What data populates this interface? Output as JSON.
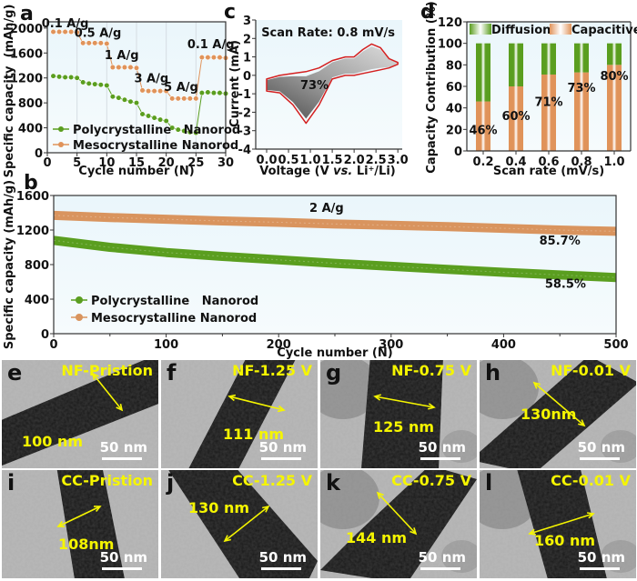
{
  "chart_data": [
    {
      "id": "a",
      "type": "scatter-line",
      "panel_label": "a",
      "xlabel": "Cycle number (N)",
      "ylabel": "Specific capacity  (mAh/g)",
      "xlim": [
        0,
        30
      ],
      "ylim": [
        0,
        2100
      ],
      "xticks": [
        0,
        5,
        10,
        15,
        20,
        25,
        30
      ],
      "yticks": [
        0,
        400,
        800,
        1200,
        1600,
        2000
      ],
      "grid": "vertical",
      "legend_position": "bottom-left",
      "annotations": [
        {
          "text": "0.1 A/g",
          "x": 3,
          "y": 2010
        },
        {
          "text": "0.5 A/g",
          "x": 8.5,
          "y": 1860
        },
        {
          "text": "1 A/g",
          "x": 12.5,
          "y": 1500
        },
        {
          "text": "3 A/g",
          "x": 17.5,
          "y": 1130
        },
        {
          "text": "5 A/g",
          "x": 22.5,
          "y": 990
        },
        {
          "text": "0.1 A/g",
          "x": 27.5,
          "y": 1680
        }
      ],
      "series": [
        {
          "name": "Polycrystalline   Nanorod",
          "color": "#5a9e1f",
          "x": [
            1,
            2,
            3,
            4,
            5,
            6,
            7,
            8,
            9,
            10,
            11,
            12,
            13,
            14,
            15,
            16,
            17,
            18,
            19,
            20,
            21,
            22,
            23,
            24,
            25,
            26,
            27,
            28,
            29,
            30
          ],
          "y": [
            1230,
            1220,
            1210,
            1210,
            1200,
            1130,
            1110,
            1100,
            1090,
            1080,
            900,
            880,
            850,
            820,
            800,
            620,
            590,
            560,
            530,
            510,
            400,
            370,
            350,
            330,
            320,
            960,
            970,
            960,
            960,
            950
          ]
        },
        {
          "name": "Mesocrystalline Nanorod",
          "color": "#e0935a",
          "x": [
            1,
            2,
            3,
            4,
            5,
            6,
            7,
            8,
            9,
            10,
            11,
            12,
            13,
            14,
            15,
            16,
            17,
            18,
            19,
            20,
            21,
            22,
            23,
            24,
            25,
            26,
            27,
            28,
            29,
            30
          ],
          "y": [
            1940,
            1940,
            1940,
            1940,
            1930,
            1760,
            1760,
            1760,
            1760,
            1750,
            1370,
            1370,
            1370,
            1370,
            1360,
            1000,
            990,
            990,
            990,
            990,
            870,
            870,
            870,
            870,
            870,
            1530,
            1530,
            1530,
            1530,
            1520
          ]
        }
      ]
    },
    {
      "id": "c",
      "type": "line",
      "panel_label": "c",
      "title": "Scan Rate: 0.8 mV/s",
      "xlabel_parts": [
        "Voltage (V ",
        "vs.",
        " Li",
        "+",
        "/Li)"
      ],
      "ylabel": "Current (mA)",
      "xlim": [
        -0.25,
        3.1
      ],
      "ylim": [
        -4,
        3
      ],
      "xticks": [
        "0.0",
        "0.5",
        "1.0",
        "1.5",
        "2.0",
        "2.5",
        "3.0"
      ],
      "yticks": [
        "-4",
        "-3",
        "-2",
        "-1",
        "0",
        "1",
        "2",
        "3"
      ],
      "annotation": "73%",
      "outer_curve_color": "#d42020",
      "cv_upper": {
        "x": [
          0.0,
          0.3,
          0.6,
          0.9,
          1.2,
          1.5,
          1.8,
          2.0,
          2.2,
          2.4,
          2.6,
          2.8,
          3.0
        ],
        "y": [
          -0.85,
          -0.95,
          -1.6,
          -2.6,
          -1.6,
          -0.2,
          0.0,
          0.0,
          0.1,
          0.2,
          0.3,
          0.4,
          0.6
        ]
      },
      "cv_lower": {
        "x": [
          0.0,
          0.3,
          0.6,
          0.9,
          1.2,
          1.5,
          1.8,
          2.0,
          2.2,
          2.4,
          2.6,
          2.8,
          3.0
        ],
        "y": [
          -0.2,
          0.0,
          0.1,
          0.2,
          0.4,
          0.8,
          1.0,
          1.0,
          1.4,
          1.7,
          1.5,
          0.9,
          0.7
        ]
      }
    },
    {
      "id": "d",
      "type": "bar",
      "panel_label": "d",
      "xlabel": "Scan rate (mV/s)",
      "ylabel": "Capacity Contribution (%)",
      "categories": [
        "0.2",
        "0.4",
        "0.6",
        "0.8",
        "1.0"
      ],
      "ylim": [
        0,
        120
      ],
      "yticks": [
        0,
        20,
        40,
        60,
        80,
        100,
        120
      ],
      "legend_position": "top",
      "series": [
        {
          "name": "Capacitive",
          "color": "#e0935a",
          "values": [
            46,
            60,
            71,
            73,
            80
          ]
        },
        {
          "name": "Diffusion",
          "color": "#5a9e1f",
          "values": [
            54,
            40,
            29,
            27,
            20
          ]
        }
      ],
      "labels": [
        "46%",
        "60%",
        "71%",
        "73%",
        "80%"
      ],
      "label_y": [
        20,
        33,
        46,
        59,
        70
      ]
    },
    {
      "id": "b",
      "type": "line",
      "panel_label": "b",
      "title": "2 A/g",
      "xlabel": "Cycle number (N)",
      "ylabel": "Specific capacity (mAh/g)",
      "xlim": [
        0,
        500
      ],
      "ylim": [
        0,
        1600
      ],
      "xticks": [
        0,
        100,
        200,
        300,
        400,
        500
      ],
      "yticks": [
        0,
        400,
        800,
        1200,
        1600
      ],
      "legend_position": "bottom-left",
      "retention_labels": [
        {
          "text": "85.7%",
          "x": 450,
          "y": 1030
        },
        {
          "text": "58.5%",
          "x": 455,
          "y": 530
        }
      ],
      "series": [
        {
          "name": "Polycrystalline   Nanorod",
          "color": "#5a9e1f",
          "x": [
            0,
            50,
            100,
            150,
            200,
            250,
            300,
            350,
            400,
            450,
            500
          ],
          "y": [
            1080,
            1000,
            940,
            895,
            855,
            815,
            780,
            745,
            710,
            680,
            650
          ]
        },
        {
          "name": "Mesocrystalline Nanorod",
          "color": "#d9945e",
          "x": [
            0,
            50,
            100,
            150,
            200,
            250,
            300,
            350,
            400,
            450,
            500
          ],
          "y": [
            1370,
            1345,
            1325,
            1305,
            1290,
            1270,
            1255,
            1240,
            1220,
            1200,
            1185
          ]
        }
      ]
    }
  ],
  "tem_panels": [
    {
      "letter": "e",
      "title": "NF-Pristion",
      "measurement": "100 nm",
      "scale": "50 nm"
    },
    {
      "letter": "f",
      "title": "NF-1.25 V",
      "measurement": "111 nm",
      "scale": "50 nm"
    },
    {
      "letter": "g",
      "title": "NF-0.75 V",
      "measurement": "125 nm",
      "scale": "50 nm"
    },
    {
      "letter": "h",
      "title": "NF-0.01 V",
      "measurement": "130nm",
      "scale": "50 nm"
    },
    {
      "letter": "i",
      "title": "CC-Pristion",
      "measurement": "108nm",
      "scale": "50 nm"
    },
    {
      "letter": "j",
      "title": "CC-1.25 V",
      "measurement": "130 nm",
      "scale": "50 nm"
    },
    {
      "letter": "k",
      "title": "CC-0.75 V",
      "measurement": "144 nm",
      "scale": "50 nm"
    },
    {
      "letter": "l",
      "title": "CC-0.01 V",
      "measurement": "160 nm",
      "scale": "50 nm"
    }
  ]
}
